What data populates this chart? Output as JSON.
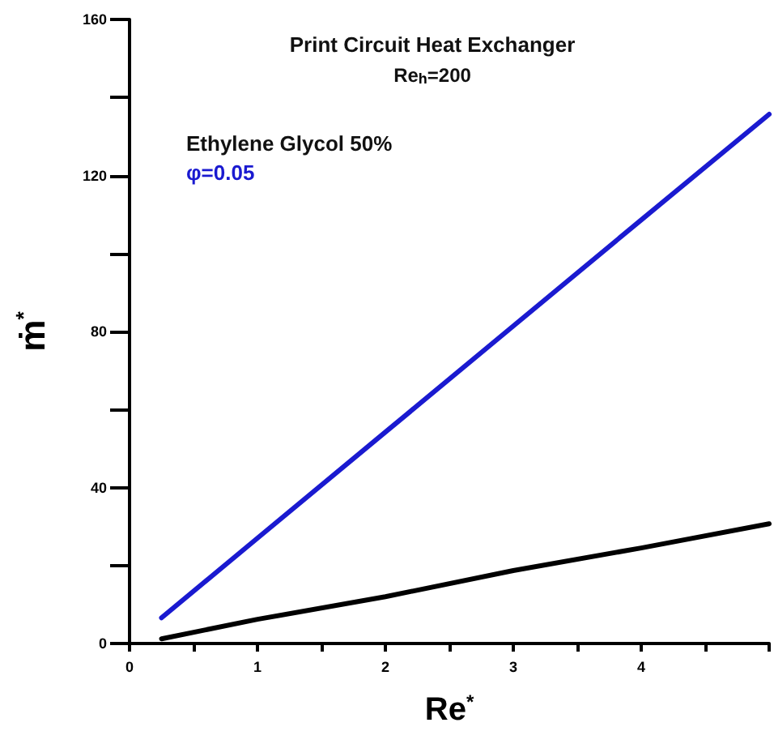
{
  "chart_data": {
    "type": "line",
    "title": "Print Circuit Heat Exchanger",
    "subtitle": "Re$_{h}$=200",
    "xlabel": "Re$^{*}$",
    "ylabel": "ṁ$^{*}$",
    "annotations": [
      "Ethylene Glycol 50%"
    ],
    "x": [
      0.25,
      1,
      2,
      3,
      4,
      5
    ],
    "series": [
      {
        "name": "φ=0.05",
        "color": "#1a1ad0",
        "values": [
          6.6,
          27,
          54.2,
          81.4,
          108.6,
          135.7
        ]
      },
      {
        "color": "#000000",
        "values": [
          1.2,
          6.2,
          12,
          18.7,
          24.5,
          30.7
        ]
      }
    ],
    "xlim": [
      0,
      5
    ],
    "xticks": [
      0,
      {
        "value": 0.5,
        "label": null
      },
      1,
      {
        "value": 1.5,
        "label": null
      },
      2,
      {
        "value": 2.5,
        "label": null
      },
      3,
      {
        "value": 3.5,
        "label": null
      },
      4,
      {
        "value": 4.5,
        "label": null
      },
      {
        "value": 5,
        "label": null
      }
    ],
    "ylim": [
      0,
      160
    ],
    "yticks": [
      0,
      {
        "value": 20,
        "label": null
      },
      40,
      {
        "value": 60,
        "label": null
      },
      80,
      {
        "value": 100,
        "label": null
      },
      120,
      {
        "value": 140,
        "label": null
      },
      160
    ],
    "grid": false,
    "legend": false,
    "marker": "none",
    "line_style": "solid"
  }
}
